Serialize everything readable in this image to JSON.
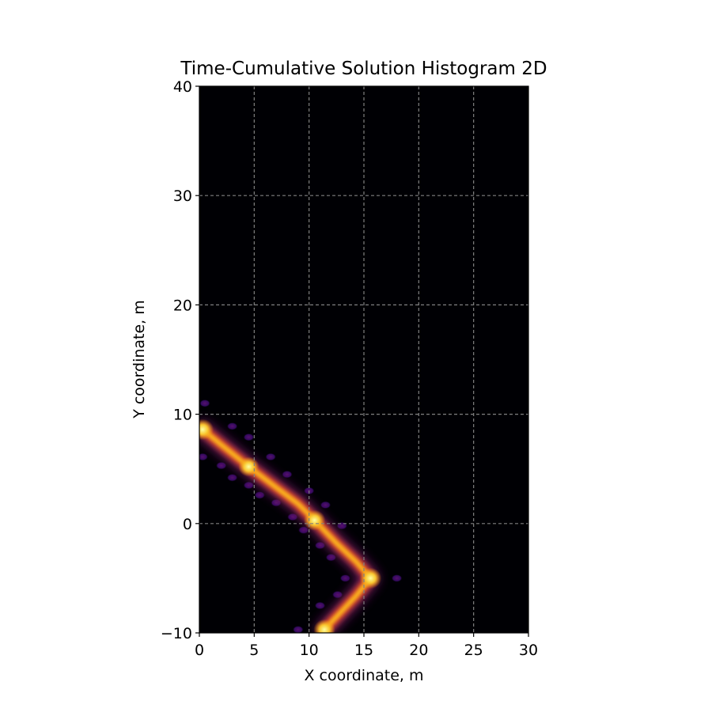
{
  "chart_data": {
    "type": "heatmap",
    "title": "Time-Cumulative Solution Histogram 2D",
    "xlabel": "X coordinate, m",
    "ylabel": "Y coordinate, m",
    "xlim": [
      0,
      30
    ],
    "ylim": [
      -10,
      40
    ],
    "xticks": [
      0,
      5,
      10,
      15,
      20,
      25,
      30
    ],
    "yticks": [
      -10,
      0,
      10,
      20,
      30,
      40
    ],
    "xtick_labels": [
      "0",
      "5",
      "10",
      "15",
      "20",
      "25",
      "30"
    ],
    "ytick_labels": [
      "−10",
      "0",
      "10",
      "20",
      "30",
      "40"
    ],
    "grid": true,
    "colormap": "inferno",
    "background_color": "#000004",
    "grid_color": "#808080",
    "trajectory": [
      {
        "x": 0.3,
        "y": 8.6
      },
      {
        "x": 2.0,
        "y": 7.2
      },
      {
        "x": 4.5,
        "y": 5.2
      },
      {
        "x": 7.0,
        "y": 3.3
      },
      {
        "x": 9.0,
        "y": 1.8
      },
      {
        "x": 10.5,
        "y": 0.3
      },
      {
        "x": 12.5,
        "y": -1.8
      },
      {
        "x": 14.3,
        "y": -3.5
      },
      {
        "x": 15.6,
        "y": -5.0
      },
      {
        "x": 14.3,
        "y": -6.6
      },
      {
        "x": 12.8,
        "y": -8.2
      },
      {
        "x": 11.4,
        "y": -9.7
      }
    ],
    "hotspots": [
      {
        "x": 0.3,
        "y": 8.6,
        "intensity": 1.0
      },
      {
        "x": 4.5,
        "y": 5.2,
        "intensity": 0.85
      },
      {
        "x": 10.5,
        "y": 0.3,
        "intensity": 0.95
      },
      {
        "x": 15.6,
        "y": -5.0,
        "intensity": 1.0
      },
      {
        "x": 11.4,
        "y": -9.7,
        "intensity": 0.95
      }
    ],
    "side_lobes": [
      {
        "x": 0.5,
        "y": 11.0
      },
      {
        "x": 0.3,
        "y": 6.1
      },
      {
        "x": 2.0,
        "y": 5.3
      },
      {
        "x": 3.0,
        "y": 4.2
      },
      {
        "x": 4.5,
        "y": 3.5
      },
      {
        "x": 5.5,
        "y": 2.6
      },
      {
        "x": 7.0,
        "y": 1.9
      },
      {
        "x": 8.5,
        "y": 0.6
      },
      {
        "x": 9.5,
        "y": -0.6
      },
      {
        "x": 11.0,
        "y": -2.0
      },
      {
        "x": 12.0,
        "y": -3.1
      },
      {
        "x": 13.3,
        "y": -5.0
      },
      {
        "x": 12.6,
        "y": -6.5
      },
      {
        "x": 11.0,
        "y": -7.5
      },
      {
        "x": 9.0,
        "y": -9.7
      },
      {
        "x": 18.0,
        "y": -5.0
      },
      {
        "x": 3.0,
        "y": 8.9
      },
      {
        "x": 4.5,
        "y": 7.9
      },
      {
        "x": 6.5,
        "y": 6.1
      },
      {
        "x": 8.0,
        "y": 4.5
      },
      {
        "x": 10.0,
        "y": 3.0
      },
      {
        "x": 11.5,
        "y": 1.7
      },
      {
        "x": 13.0,
        "y": -0.2
      }
    ]
  }
}
